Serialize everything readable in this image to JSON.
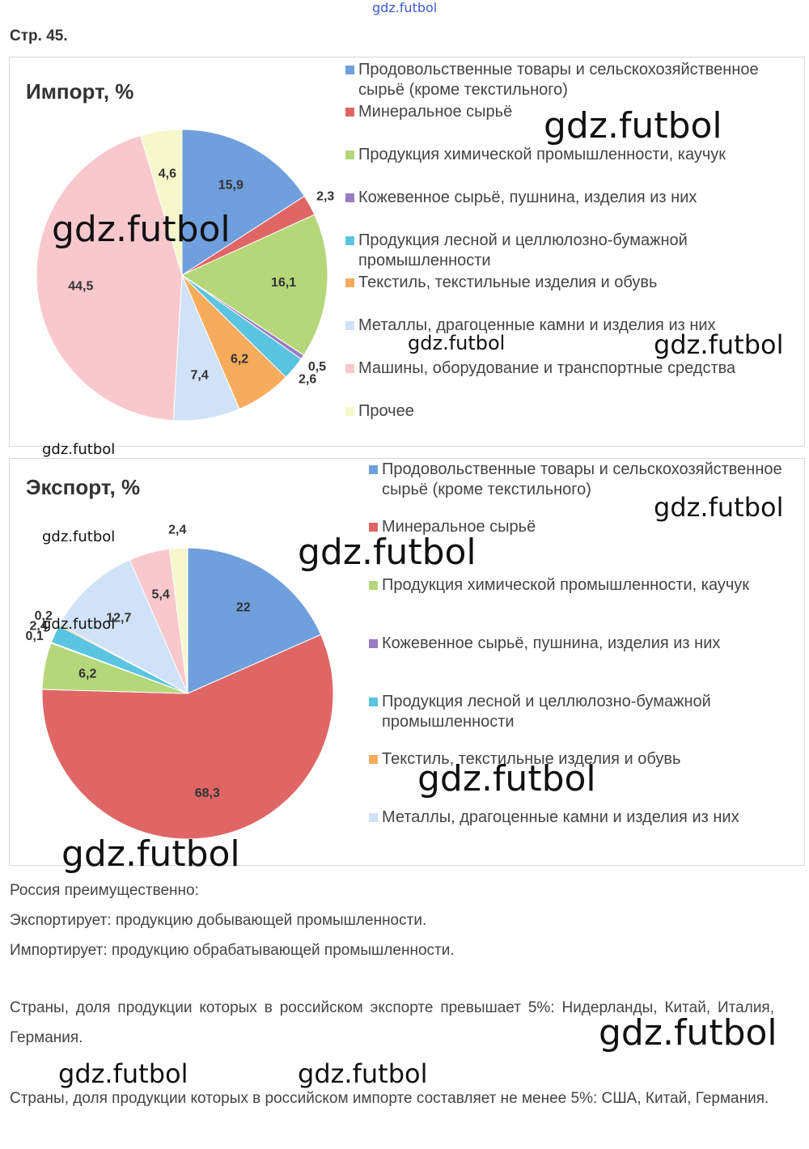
{
  "header": "Стр. 45.",
  "chart_data": [
    {
      "type": "pie",
      "title": "Импорт, %",
      "categories": [
        "Продовольственные товары и сельскохозяйственное сырьё (кроме текстильного)",
        "Минеральное сырьё",
        "Продукция химической промышленности, каучук",
        "Кожевенное сырьё, пушнина, изделия из них",
        "Продукция лесной и целлюлозно-бумажной промышленности",
        "Текстиль, текстильные изделия и обувь",
        "Металлы, драгоценные камни и изделия из них",
        "Машины, оборудование и транспортные средства",
        "Прочее"
      ],
      "values": [
        15.9,
        2.3,
        16.1,
        0.5,
        2.6,
        6.2,
        7.4,
        44.5,
        4.6
      ],
      "value_labels": [
        "15,9",
        "2,3",
        "16,1",
        "0,5",
        "2,6",
        "6,2",
        "7,4",
        "44,5",
        "4,6"
      ],
      "colors": [
        "#6f9fdc",
        "#e06666",
        "#b5d77a",
        "#9a7cc4",
        "#5bc4e0",
        "#f6ac5c",
        "#cfe2f8",
        "#f8c8cc",
        "#f6f8cc"
      ]
    },
    {
      "type": "pie",
      "title": "Экспорт, %",
      "categories": [
        "Продовольственные товары и сельскохозяйственное сырьё (кроме текстильного)",
        "Минеральное сырьё",
        "Продукция химической промышленности, каучук",
        "Кожевенное сырьё, пушнина, изделия из них",
        "Продукция лесной и целлюлозно-бумажной промышленности",
        "Текстиль, текстильные изделия и обувь",
        "Металлы, драгоценные камни и изделия из них",
        null,
        null
      ],
      "values": [
        22,
        68.3,
        6.2,
        0.1,
        2.4,
        0.2,
        12.7,
        5.4,
        2.4
      ],
      "value_labels": [
        "22",
        "68,3",
        "6,2",
        "0,1",
        "2,4",
        "0,2",
        "12,7",
        "5,4",
        "2,4"
      ],
      "colors": [
        "#6f9fdc",
        "#e06666",
        "#b5d77a",
        "#9a7cc4",
        "#5bc4e0",
        "#f6ac5c",
        "#cfe2f8",
        "#f8c8cc",
        "#f6f8cc"
      ]
    }
  ],
  "text": [
    "Россия преимущественно:",
    "Экспортирует: продукцию добывающей промышленности.",
    "Импортирует: продукцию обрабатывающей промышленности.",
    "Страны, доля продукции которых в российском экспорте превышает 5%: Нидерланды, Китай, Италия, Германия.",
    "Страны, доля продукции которых в российском импорте составляет не менее 5%: США, Китай, Германия."
  ],
  "watermarks": [
    "gdz.futbol",
    "gdz.futbol",
    "gdz.futbol",
    "gdz.futbol",
    "gdz.futbol",
    "gdz.futbol",
    "gdz.futbol",
    "gdz.futbol",
    "gdz.futbol",
    "gdz.futbol",
    "gdz.futbol",
    "gdz.futbol",
    "gdz.futbol",
    "gdz.futbol",
    "gdz.futbol"
  ]
}
